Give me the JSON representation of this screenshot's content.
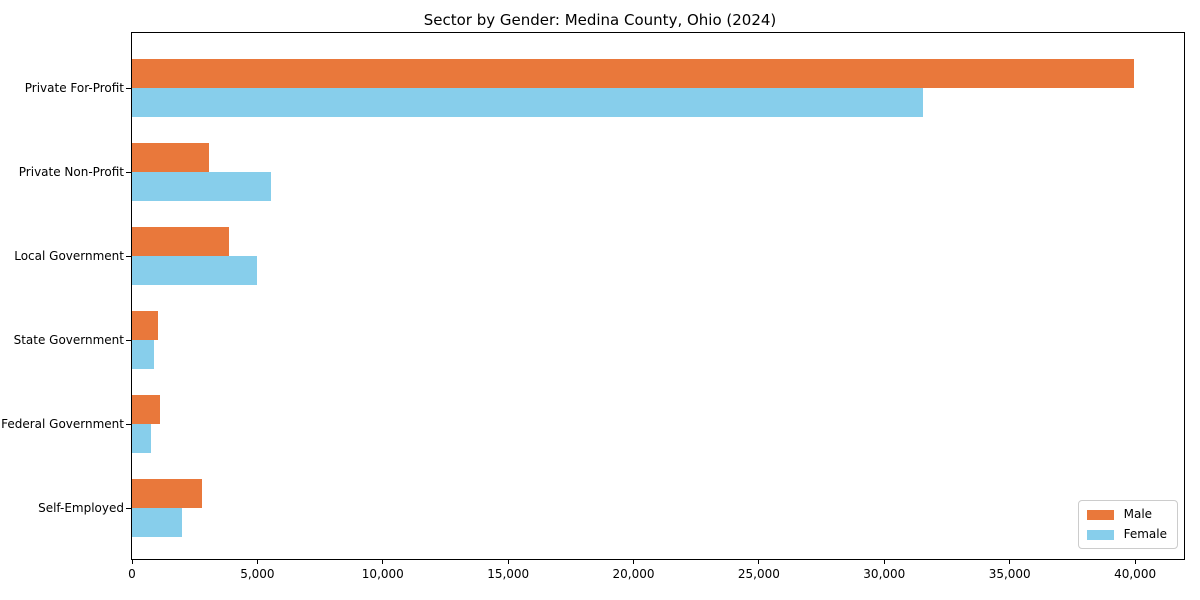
{
  "chart_data": {
    "type": "bar",
    "orientation": "horizontal",
    "title": "Sector by Gender: Medina County, Ohio (2024)",
    "categories": [
      "Private For-Profit",
      "Private Non-Profit",
      "Local Government",
      "State Government",
      "Federal Government",
      "Self-Employed"
    ],
    "series": [
      {
        "name": "Male",
        "color": "#E9783B",
        "values": [
          39950,
          3050,
          3850,
          1050,
          1100,
          2800
        ]
      },
      {
        "name": "Female",
        "color": "#87CEEB",
        "values": [
          31550,
          5550,
          5000,
          875,
          750,
          2000
        ]
      }
    ],
    "xlabel": "",
    "ylabel": "",
    "xlim": [
      0,
      41950
    ],
    "x_ticks": [
      0,
      5000,
      10000,
      15000,
      20000,
      25000,
      30000,
      35000,
      40000
    ],
    "x_tick_labels": [
      "0",
      "5,000",
      "10,000",
      "15,000",
      "20,000",
      "25,000",
      "30,000",
      "35,000",
      "40,000"
    ],
    "grid": false,
    "legend": {
      "position": "lower right",
      "entries": [
        "Male",
        "Female"
      ]
    }
  },
  "colors": {
    "frame": "#000000",
    "background": "#FFFFFF",
    "legend_border": "#CCCCCC"
  }
}
